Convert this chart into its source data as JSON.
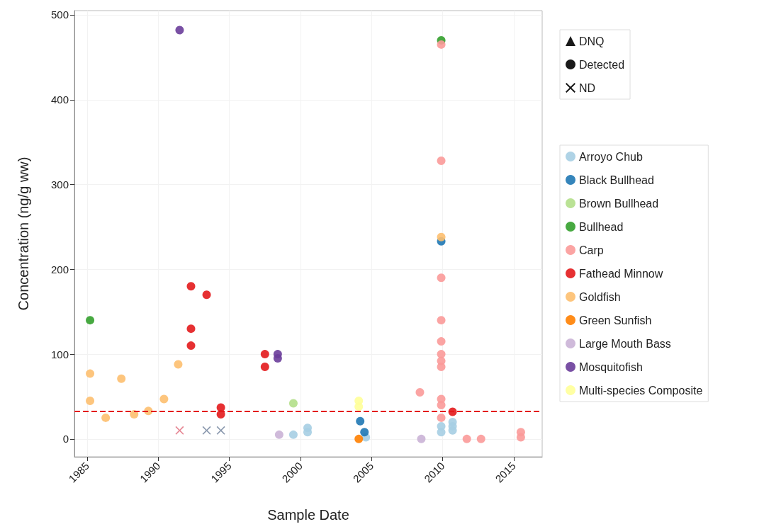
{
  "chart_data": {
    "type": "scatter",
    "xlabel": "Sample Date",
    "ylabel": "Concentration (ng/g ww)",
    "xlim": [
      1984.1,
      2017.0
    ],
    "xticks": [
      1985,
      1990,
      1995,
      2000,
      2005,
      2010,
      2015
    ],
    "ylim": [
      -21,
      505
    ],
    "yticks": [
      0,
      100,
      200,
      300,
      400,
      500
    ],
    "grid": true,
    "legend": "right",
    "ref_lines": [
      {
        "axis": "y",
        "value": 33,
        "color": "#e31a1c",
        "line_style": "dashed"
      }
    ],
    "series": [
      {
        "name": "DNQ",
        "color": "#000000",
        "marker": "triangle"
      },
      {
        "name": "Detected",
        "color": "#000000",
        "marker": "circle"
      },
      {
        "name": "ND",
        "color": "#000000",
        "marker": "cross"
      },
      {
        "name": "Arroyo Chub",
        "color": "#a6cee3",
        "marker": "circle",
        "x": [
          1999.5,
          2000.5,
          2000.5,
          2004.6,
          2009.9,
          2009.9,
          2010.7,
          2010.7,
          2010.7
        ],
        "values": [
          5,
          13,
          8,
          2,
          15,
          8,
          20,
          15,
          10
        ]
      },
      {
        "name": "Black Bullhead",
        "color": "#1f78b4",
        "marker": "circle",
        "x": [
          2004.2,
          2004.5,
          2009.9
        ],
        "values": [
          21,
          8,
          233
        ]
      },
      {
        "name": "Brown Bullhead",
        "color": "#b2df8a",
        "marker": "circle",
        "x": [
          1999.5
        ],
        "values": [
          42
        ]
      },
      {
        "name": "Bullhead",
        "color": "#33a02c",
        "marker": "circle",
        "x": [
          1985.2,
          2009.9
        ],
        "values": [
          140,
          470
        ]
      },
      {
        "name": "Carp",
        "color": "#fb9a99",
        "marker": "circle",
        "x": [
          2008.4,
          2009.9,
          2009.9,
          2009.9,
          2009.9,
          2009.9,
          2009.9,
          2009.9,
          2009.9,
          2009.9,
          2009.9,
          2009.9,
          2011.7,
          2012.7,
          2015.5,
          2015.5
        ],
        "values": [
          55,
          465,
          328,
          190,
          140,
          115,
          100,
          92,
          85,
          47,
          40,
          25,
          0,
          0,
          8,
          2
        ]
      },
      {
        "name": "Fathead Minnow",
        "color": "#e31a1c",
        "marker": "circle",
        "x": [
          1992.3,
          1992.3,
          1992.3,
          1993.4,
          1994.4,
          1994.4,
          1997.5,
          1997.5,
          2010.7
        ],
        "values": [
          180,
          130,
          110,
          170,
          37,
          29,
          100,
          85,
          32
        ]
      },
      {
        "name": "Goldfish",
        "color": "#fdbf6f",
        "marker": "circle",
        "x": [
          1985.2,
          1985.2,
          1986.3,
          1987.4,
          1988.3,
          1989.3,
          1990.4,
          1991.4,
          2009.9
        ],
        "values": [
          77,
          45,
          25,
          71,
          29,
          33,
          47,
          88,
          238
        ]
      },
      {
        "name": "Green Sunfish",
        "color": "#ff7f00",
        "marker": "circle",
        "x": [
          2004.1
        ],
        "values": [
          0
        ]
      },
      {
        "name": "Large Mouth Bass",
        "color": "#cab2d6",
        "marker": "circle",
        "x": [
          1998.5,
          2008.5
        ],
        "values": [
          5,
          0
        ]
      },
      {
        "name": "Mosquitofish",
        "color": "#6a3d9a",
        "marker": "circle",
        "x": [
          1991.5,
          1998.4,
          1998.4
        ],
        "values": [
          482,
          100,
          95
        ]
      },
      {
        "name": "Multi-species Composite",
        "color": "#ffff99",
        "marker": "circle",
        "x": [
          2004.1,
          2004.1
        ],
        "values": [
          45,
          38
        ]
      },
      {
        "color": "#e37b8a",
        "marker": "cross",
        "x": [
          1991.5
        ],
        "values": [
          10
        ]
      },
      {
        "color": "#7f8fa6",
        "marker": "cross",
        "x": [
          1993.4,
          1994.4
        ],
        "values": [
          10,
          10
        ]
      }
    ]
  }
}
